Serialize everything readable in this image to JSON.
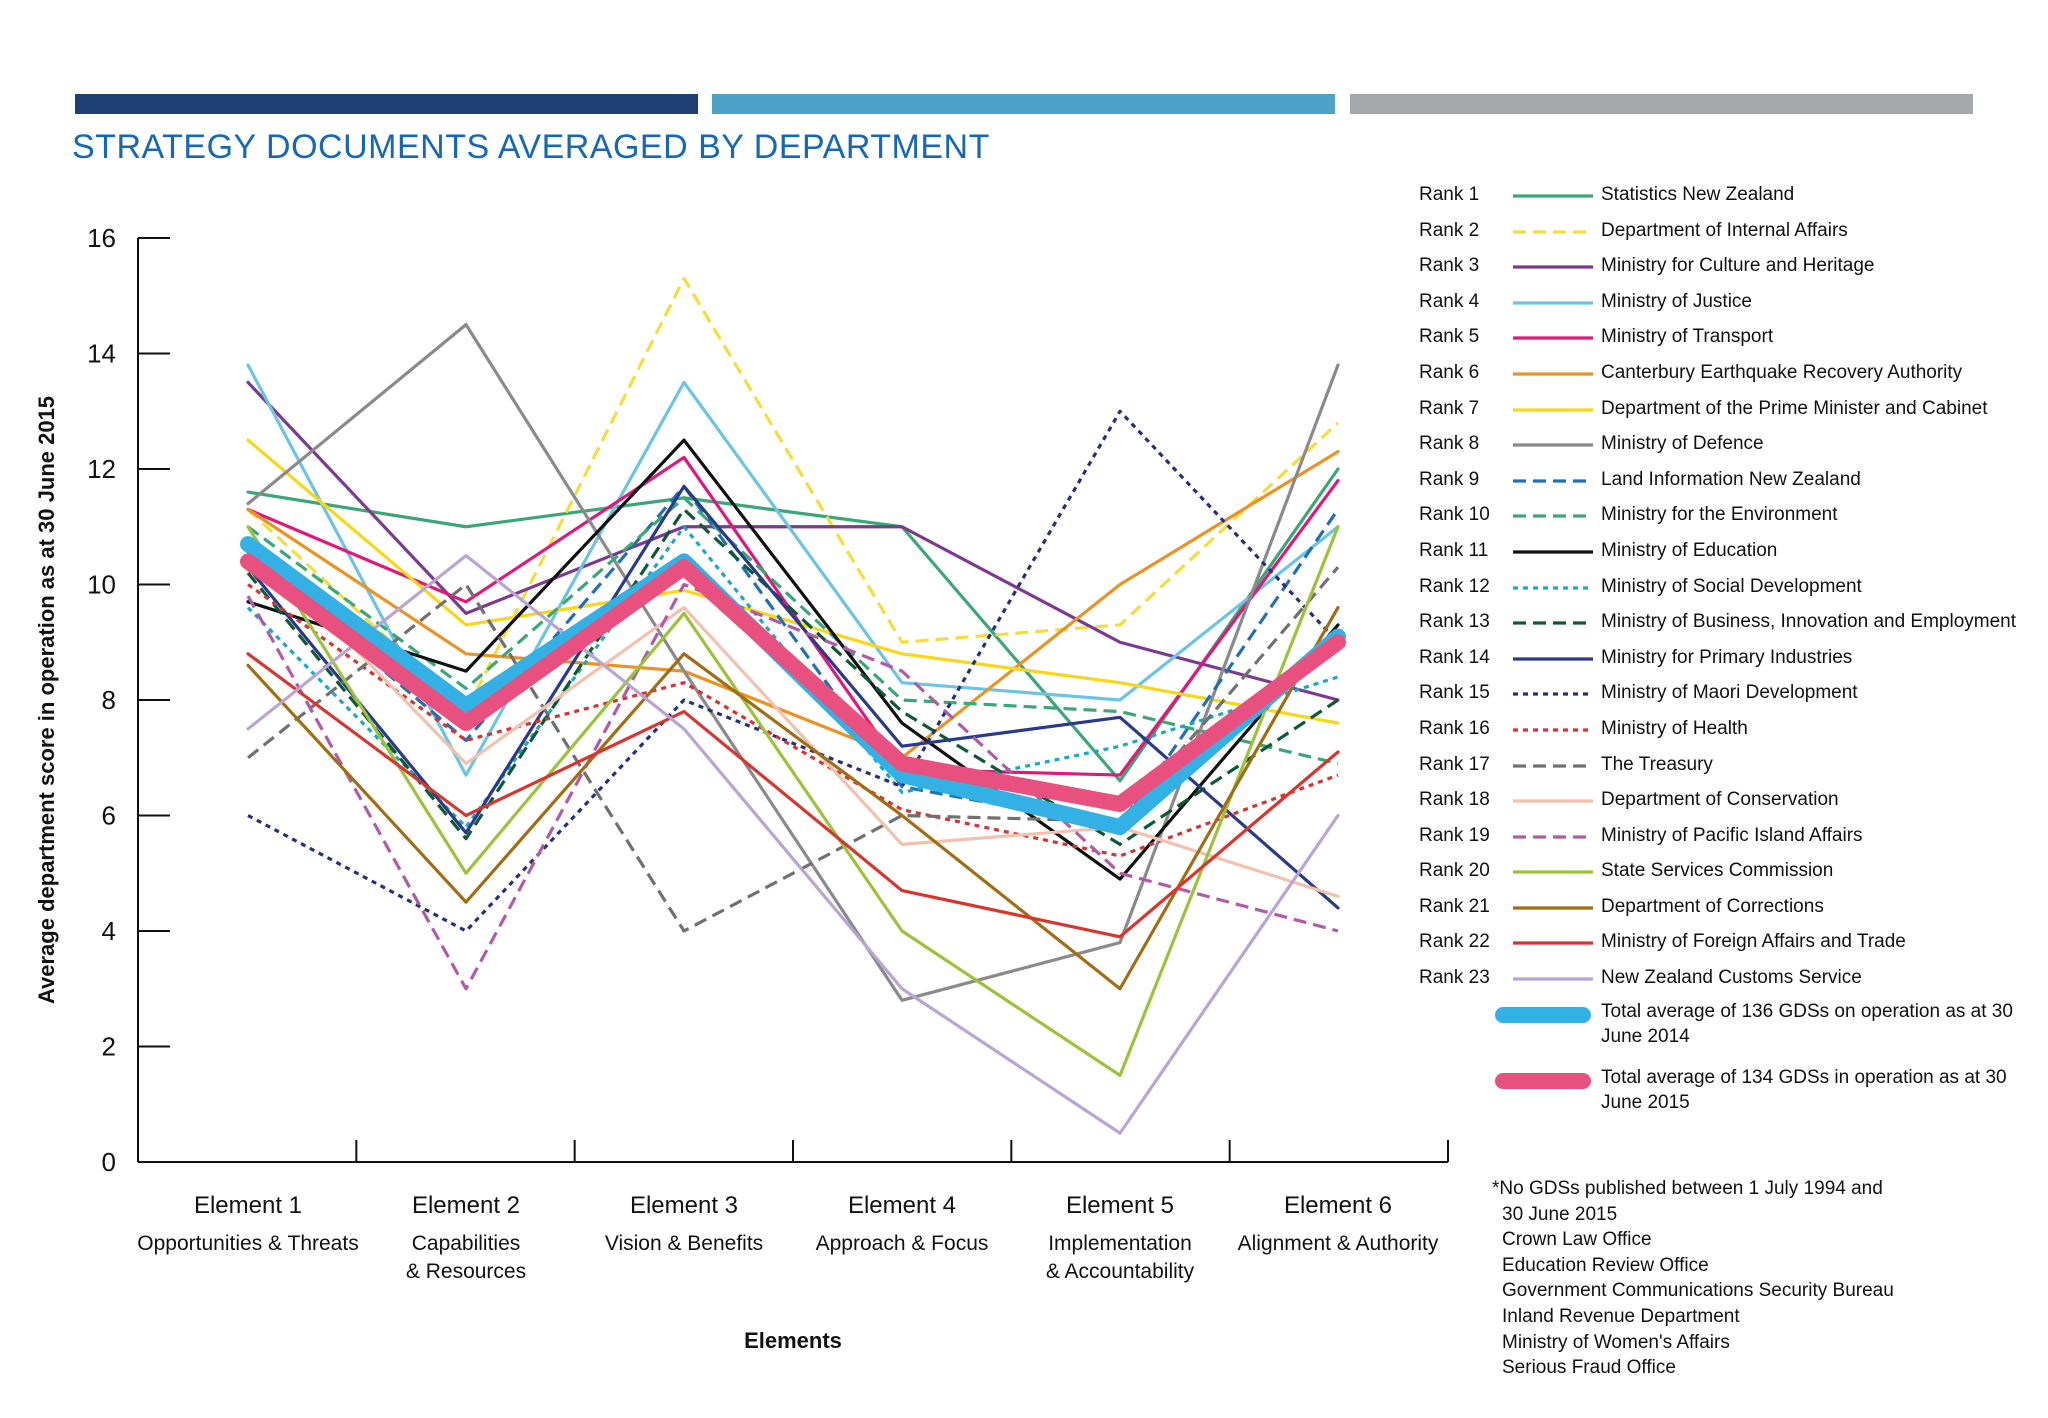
{
  "header": {
    "title": "STRATEGY DOCUMENTS AVERAGED BY DEPARTMENT",
    "bar_colors": [
      "#1f3f72",
      "#4ea2c7",
      "#a5a9ac"
    ]
  },
  "chart_data": {
    "type": "line",
    "xlabel": "Elements",
    "ylabel": "Average department score in operation as at 30 June 2015",
    "ylim": [
      0,
      16
    ],
    "yticks": [
      0,
      2,
      4,
      6,
      8,
      10,
      12,
      14,
      16
    ],
    "grid": false,
    "legend_position": "right",
    "categories": [
      {
        "name": "Element 1",
        "sub": [
          "Opportunities & Threats"
        ]
      },
      {
        "name": "Element 2",
        "sub": [
          "Capabilities",
          "& Resources"
        ]
      },
      {
        "name": "Element 3",
        "sub": [
          "Vision & Benefits"
        ]
      },
      {
        "name": "Element 4",
        "sub": [
          "Approach & Focus"
        ]
      },
      {
        "name": "Element 5",
        "sub": [
          "Implementation",
          "& Accountability"
        ]
      },
      {
        "name": "Element 6",
        "sub": [
          "Alignment & Authority"
        ]
      }
    ],
    "series": [
      {
        "rank": "Rank 1",
        "name": "Statistics New Zealand",
        "color": "#3aa776",
        "dash": "solid",
        "values": [
          11.6,
          11.0,
          11.5,
          11.0,
          6.6,
          12.0
        ]
      },
      {
        "rank": "Rank 2",
        "name": "Department of Internal Affairs",
        "color": "#f5dd3c",
        "dash": "dashed",
        "values": [
          11.3,
          7.8,
          15.3,
          9.0,
          9.3,
          12.8
        ]
      },
      {
        "rank": "Rank 3",
        "name": "Ministry for Culture and Heritage",
        "color": "#7b3a8f",
        "dash": "solid",
        "values": [
          13.5,
          9.5,
          11.0,
          11.0,
          9.0,
          8.0
        ]
      },
      {
        "rank": "Rank 4",
        "name": "Ministry of Justice",
        "color": "#6cc4e4",
        "dash": "solid",
        "values": [
          13.8,
          6.7,
          13.5,
          8.3,
          8.0,
          11.0
        ]
      },
      {
        "rank": "Rank 5",
        "name": "Ministry of Transport",
        "color": "#e0187c",
        "dash": "solid",
        "values": [
          11.3,
          9.7,
          12.2,
          6.8,
          6.7,
          11.8
        ]
      },
      {
        "rank": "Rank 6",
        "name": "Canterbury Earthquake Recovery Authority",
        "color": "#eb9322",
        "dash": "solid",
        "values": [
          11.3,
          8.8,
          8.5,
          7.0,
          10.0,
          12.3
        ]
      },
      {
        "rank": "Rank 7",
        "name": "Department of the Prime Minister and Cabinet",
        "color": "#f8d718",
        "dash": "solid",
        "values": [
          12.5,
          9.3,
          9.9,
          8.8,
          8.3,
          7.6
        ]
      },
      {
        "rank": "Rank 8",
        "name": "Ministry of Defence",
        "color": "#8a8a8a",
        "dash": "solid",
        "values": [
          11.4,
          14.5,
          8.5,
          2.8,
          3.8,
          13.8
        ]
      },
      {
        "rank": "Rank 9",
        "name": "Land Information New Zealand",
        "color": "#2170b3",
        "dash": "dashed",
        "values": [
          10.5,
          7.3,
          11.7,
          6.5,
          5.8,
          11.3
        ]
      },
      {
        "rank": "Rank 10",
        "name": "Ministry for the Environment",
        "color": "#3aa776",
        "dash": "dashed",
        "values": [
          11.0,
          8.2,
          11.5,
          8.0,
          7.8,
          6.9
        ]
      },
      {
        "rank": "Rank 11",
        "name": "Ministry of Education",
        "color": "#111111",
        "dash": "solid",
        "values": [
          9.7,
          8.5,
          12.5,
          7.6,
          4.9,
          9.3
        ]
      },
      {
        "rank": "Rank 12",
        "name": "Ministry of Social Development",
        "color": "#1aa9c2",
        "dash": "dotted",
        "values": [
          9.6,
          5.8,
          11.0,
          6.4,
          7.2,
          8.4
        ]
      },
      {
        "rank": "Rank 13",
        "name": "Ministry of Business, Innovation and Employment",
        "color": "#0d5a32",
        "dash": "dashed",
        "values": [
          10.2,
          5.6,
          11.3,
          7.8,
          5.5,
          8.0
        ]
      },
      {
        "rank": "Rank 14",
        "name": "Ministry for Primary Industries",
        "color": "#2a3a8a",
        "dash": "solid",
        "values": [
          10.3,
          5.7,
          11.7,
          7.2,
          7.7,
          4.4
        ]
      },
      {
        "rank": "Rank 15",
        "name": "Ministry of Maori Development",
        "color": "#25307a",
        "dash": "dotted",
        "values": [
          6.0,
          4.0,
          8.0,
          6.5,
          13.0,
          9.0
        ]
      },
      {
        "rank": "Rank 16",
        "name": "Ministry of Health",
        "color": "#d63333",
        "dash": "dotted",
        "values": [
          10.0,
          7.3,
          8.3,
          6.1,
          5.3,
          6.7
        ]
      },
      {
        "rank": "Rank 17",
        "name": "The Treasury",
        "color": "#707070",
        "dash": "dashed",
        "values": [
          7.0,
          10.0,
          4.0,
          6.0,
          5.9,
          10.3
        ]
      },
      {
        "rank": "Rank 18",
        "name": "Department of Conservation",
        "color": "#f2c2ae",
        "dash": "solid",
        "values": [
          10.8,
          6.9,
          9.6,
          5.5,
          5.8,
          4.6
        ]
      },
      {
        "rank": "Rank 19",
        "name": "Ministry of Pacific Island Affairs",
        "color": "#b15aa8",
        "dash": "dashed",
        "values": [
          9.8,
          3.0,
          10.0,
          8.5,
          5.0,
          4.0
        ]
      },
      {
        "rank": "Rank 20",
        "name": "State Services Commission",
        "color": "#9cc23a",
        "dash": "solid",
        "values": [
          11.0,
          5.0,
          9.5,
          4.0,
          1.5,
          11.0
        ]
      },
      {
        "rank": "Rank 21",
        "name": "Department of Corrections",
        "color": "#a26d12",
        "dash": "solid",
        "values": [
          8.6,
          4.5,
          8.8,
          6.0,
          3.0,
          9.6
        ]
      },
      {
        "rank": "Rank 22",
        "name": "Ministry of Foreign Affairs and Trade",
        "color": "#d9352f",
        "dash": "solid",
        "values": [
          8.8,
          6.0,
          7.8,
          4.7,
          3.9,
          7.1
        ]
      },
      {
        "rank": "Rank 23",
        "name": "New Zealand Customs Service",
        "color": "#b9a5d3",
        "dash": "solid",
        "values": [
          7.5,
          10.5,
          7.5,
          3.0,
          0.5,
          6.0
        ]
      },
      {
        "rank": "",
        "name": "Total average of 136 GDSs on operation as at 30 June 2014",
        "color": "#33b1e4",
        "dash": "thick",
        "values": [
          10.7,
          7.9,
          10.4,
          6.7,
          5.8,
          9.1
        ]
      },
      {
        "rank": "",
        "name": "Total average of 134 GDSs in operation as at 30 June 2015",
        "color": "#e8507f",
        "dash": "thick",
        "values": [
          10.4,
          7.6,
          10.3,
          6.9,
          6.2,
          9.0
        ]
      }
    ]
  },
  "note": {
    "title": "*No GDSs published between 1 July 1994 and",
    "title_cont": "30 June 2015",
    "departments": [
      "Crown Law Office",
      "Education Review Office",
      "Government Communications Security Bureau",
      "Inland Revenue Department",
      "Ministry of Women's Affairs",
      "Serious Fraud Office"
    ]
  }
}
